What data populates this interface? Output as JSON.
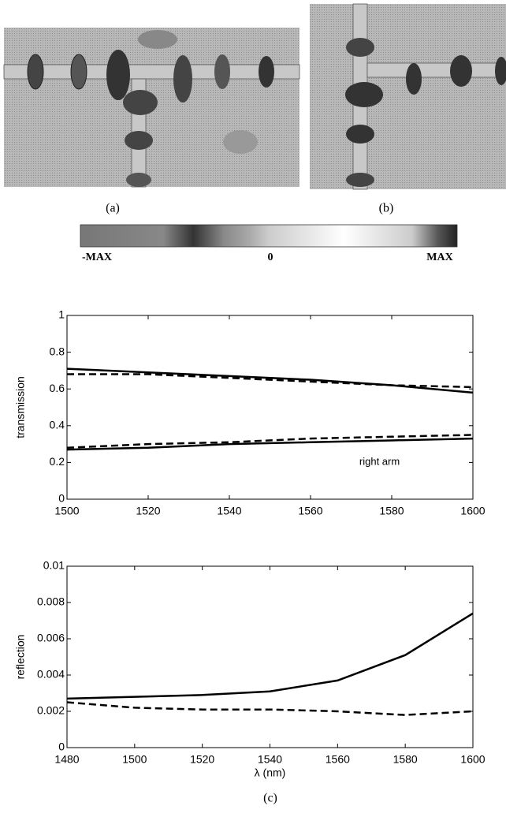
{
  "panels": [
    {
      "label": "(a)"
    },
    {
      "label": "(b)"
    }
  ],
  "colorbar": {
    "labels": [
      "-MAX",
      "0",
      "MAX"
    ]
  },
  "caption": "(c)",
  "chart_data": [
    {
      "type": "line",
      "ylabel": "transmission",
      "annotation": "right arm",
      "x": [
        1500,
        1520,
        1540,
        1560,
        1580,
        1600
      ],
      "xlim": [
        1500,
        1600
      ],
      "xticks": [
        1500,
        1520,
        1540,
        1560,
        1580,
        1600
      ],
      "ylim": [
        0,
        1
      ],
      "yticks": [
        0,
        0.2,
        0.4,
        0.6,
        0.8,
        1
      ],
      "series": [
        {
          "color": "#000000",
          "linestyle": "solid",
          "values": [
            0.71,
            0.69,
            0.67,
            0.65,
            0.62,
            0.58
          ]
        },
        {
          "color": "#000000",
          "linestyle": "dashed",
          "values": [
            0.68,
            0.68,
            0.66,
            0.64,
            0.62,
            0.61
          ]
        },
        {
          "color": "#000000",
          "linestyle": "solid",
          "values": [
            0.27,
            0.28,
            0.3,
            0.31,
            0.32,
            0.33
          ]
        },
        {
          "color": "#000000",
          "linestyle": "dashed",
          "values": [
            0.28,
            0.3,
            0.31,
            0.33,
            0.34,
            0.35
          ]
        }
      ]
    },
    {
      "type": "line",
      "ylabel": "reflection",
      "xlabel": "λ (nm)",
      "x": [
        1480,
        1500,
        1520,
        1540,
        1560,
        1580,
        1600
      ],
      "xlim": [
        1480,
        1600
      ],
      "xticks": [
        1480,
        1500,
        1520,
        1540,
        1560,
        1580,
        1600
      ],
      "ylim": [
        0,
        0.01
      ],
      "yticks": [
        0,
        0.002,
        0.004,
        0.006,
        0.008,
        0.01
      ],
      "series": [
        {
          "color": "#000000",
          "linestyle": "solid",
          "values": [
            0.0027,
            0.0028,
            0.0029,
            0.0031,
            0.0037,
            0.0051,
            0.0074
          ]
        },
        {
          "color": "#000000",
          "linestyle": "dashed",
          "values": [
            0.0025,
            0.0022,
            0.0021,
            0.0021,
            0.002,
            0.0018,
            0.002
          ]
        }
      ]
    }
  ]
}
